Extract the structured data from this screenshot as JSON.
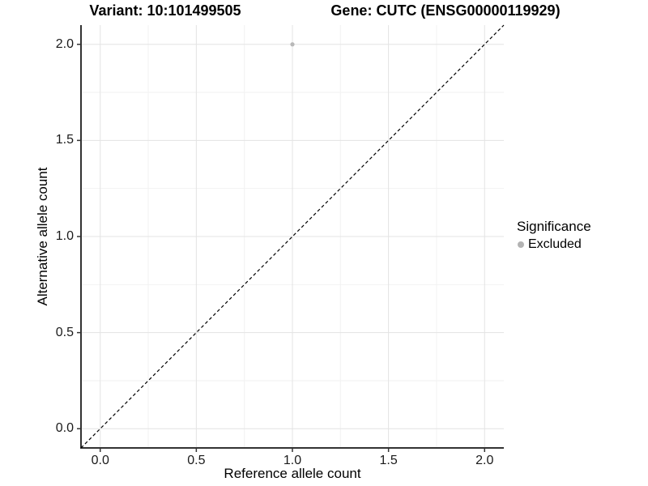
{
  "chart_data": {
    "type": "scatter",
    "title_left": "Variant: 10:101499505",
    "title_right": "Gene: CUTC (ENSG00000119929)",
    "xlabel": "Reference allele count",
    "ylabel": "Alternative allele count",
    "xlim": [
      -0.1,
      2.1
    ],
    "ylim": [
      -0.1,
      2.1
    ],
    "x_ticks": [
      0.0,
      0.5,
      1.0,
      1.5,
      2.0
    ],
    "x_tick_labels": [
      "0.0",
      "0.5",
      "1.0",
      "1.5",
      "2.0"
    ],
    "x_minor_ticks": [
      0.25,
      0.75,
      1.25,
      1.75
    ],
    "y_ticks": [
      0.0,
      0.5,
      1.0,
      1.5,
      2.0
    ],
    "y_tick_labels": [
      "0.0",
      "0.5",
      "1.0",
      "1.5",
      "2.0"
    ],
    "y_minor_ticks": [
      0.25,
      0.75,
      1.25,
      1.75
    ],
    "grid": "major+minor",
    "legend": {
      "title": "Significance",
      "position": "right",
      "items": [
        {
          "label": "Excluded",
          "color": "#b3b3b3",
          "marker": "circle"
        }
      ]
    },
    "series": [
      {
        "name": "Excluded",
        "color": "#b8b8b8",
        "points": [
          {
            "x": 1.0,
            "y": 2.0
          }
        ]
      }
    ],
    "reference_line": {
      "type": "identity y=x",
      "style": "dashed",
      "color": "#000000"
    }
  },
  "colors": {
    "background": "#ffffff",
    "grid_major": "#e3e3e3",
    "grid_minor": "#f2f2f2",
    "axis": "#333333",
    "tick_text": "#1a1a1a",
    "title_text": "#000000"
  }
}
